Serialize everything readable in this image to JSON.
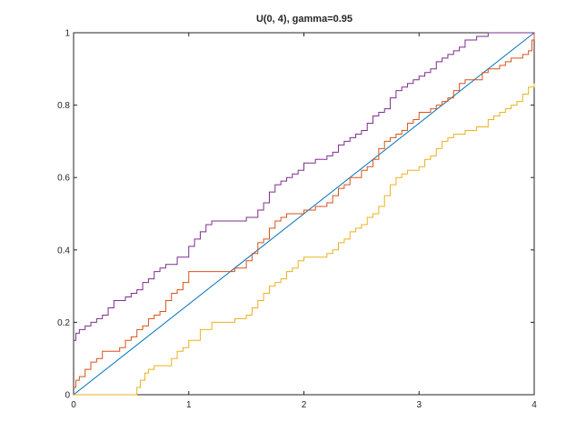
{
  "chart_data": {
    "type": "line",
    "title": "U(0, 4),  gamma=0.95",
    "xlabel": "",
    "ylabel": "",
    "xlim": [
      0,
      4
    ],
    "ylim": [
      0,
      1
    ],
    "xticks": [
      0,
      1,
      2,
      3,
      4
    ],
    "yticks": [
      0,
      0.2,
      0.4,
      0.6,
      0.8,
      1
    ],
    "xtick_labels": [
      "0",
      "1",
      "2",
      "3",
      "4"
    ],
    "ytick_labels": [
      "0",
      "0.2",
      "0.4",
      "0.6",
      "0.8",
      "1"
    ],
    "grid": false,
    "legend": "none",
    "series": [
      {
        "color": "#0072bd",
        "step": false,
        "x": [
          0,
          4
        ],
        "y": [
          0,
          1
        ]
      },
      {
        "color": "#d95319",
        "step": true,
        "x": [
          0,
          0.02,
          0.05,
          0.1,
          0.15,
          0.2,
          0.25,
          0.3,
          0.35,
          0.4,
          0.45,
          0.5,
          0.55,
          0.6,
          0.65,
          0.7,
          0.75,
          0.8,
          0.85,
          0.9,
          0.95,
          1.0,
          1.05,
          1.1,
          1.15,
          1.2,
          1.3,
          1.4,
          1.5,
          1.55,
          1.6,
          1.65,
          1.7,
          1.75,
          1.8,
          1.85,
          1.9,
          2.0,
          2.1,
          2.2,
          2.25,
          2.3,
          2.35,
          2.4,
          2.45,
          2.5,
          2.55,
          2.6,
          2.65,
          2.7,
          2.75,
          2.8,
          2.85,
          2.9,
          2.95,
          3.0,
          3.05,
          3.1,
          3.15,
          3.2,
          3.25,
          3.3,
          3.35,
          3.4,
          3.45,
          3.5,
          3.55,
          3.6,
          3.7,
          3.75,
          3.8,
          3.85,
          3.9,
          3.95,
          3.98,
          4.0
        ],
        "y": [
          0.02,
          0.04,
          0.05,
          0.07,
          0.09,
          0.1,
          0.12,
          0.12,
          0.12,
          0.13,
          0.15,
          0.16,
          0.18,
          0.19,
          0.21,
          0.22,
          0.23,
          0.26,
          0.28,
          0.29,
          0.31,
          0.34,
          0.34,
          0.34,
          0.34,
          0.34,
          0.34,
          0.35,
          0.37,
          0.39,
          0.42,
          0.43,
          0.46,
          0.48,
          0.49,
          0.5,
          0.5,
          0.51,
          0.52,
          0.53,
          0.55,
          0.57,
          0.58,
          0.6,
          0.6,
          0.62,
          0.63,
          0.65,
          0.68,
          0.7,
          0.71,
          0.72,
          0.73,
          0.75,
          0.76,
          0.78,
          0.78,
          0.79,
          0.8,
          0.81,
          0.82,
          0.84,
          0.86,
          0.87,
          0.87,
          0.87,
          0.89,
          0.9,
          0.91,
          0.92,
          0.93,
          0.93,
          0.94,
          0.95,
          0.98,
          1.0
        ]
      },
      {
        "color": "#edb120",
        "step": true,
        "x": [
          0,
          0.55,
          0.58,
          0.62,
          0.65,
          0.7,
          0.75,
          0.8,
          0.85,
          0.9,
          0.95,
          1.0,
          1.1,
          1.2,
          1.3,
          1.4,
          1.5,
          1.55,
          1.6,
          1.65,
          1.7,
          1.75,
          1.8,
          1.85,
          1.9,
          1.95,
          2.0,
          2.1,
          2.2,
          2.25,
          2.3,
          2.35,
          2.4,
          2.45,
          2.5,
          2.55,
          2.6,
          2.65,
          2.7,
          2.75,
          2.8,
          2.85,
          2.9,
          2.95,
          3.0,
          3.05,
          3.1,
          3.15,
          3.2,
          3.25,
          3.3,
          3.35,
          3.4,
          3.5,
          3.6,
          3.65,
          3.7,
          3.75,
          3.8,
          3.85,
          3.9,
          3.95,
          4.0
        ],
        "y": [
          0.0,
          0.02,
          0.04,
          0.06,
          0.07,
          0.08,
          0.08,
          0.08,
          0.1,
          0.12,
          0.13,
          0.15,
          0.18,
          0.2,
          0.2,
          0.21,
          0.22,
          0.24,
          0.26,
          0.28,
          0.3,
          0.31,
          0.32,
          0.34,
          0.35,
          0.37,
          0.38,
          0.38,
          0.39,
          0.4,
          0.42,
          0.43,
          0.45,
          0.46,
          0.47,
          0.49,
          0.5,
          0.52,
          0.55,
          0.58,
          0.6,
          0.61,
          0.62,
          0.62,
          0.63,
          0.65,
          0.66,
          0.68,
          0.7,
          0.71,
          0.72,
          0.72,
          0.73,
          0.74,
          0.76,
          0.77,
          0.78,
          0.79,
          0.8,
          0.81,
          0.83,
          0.85,
          0.86
        ]
      },
      {
        "color": "#7e2f8e",
        "step": true,
        "x": [
          0,
          0.02,
          0.05,
          0.1,
          0.15,
          0.2,
          0.25,
          0.3,
          0.35,
          0.4,
          0.45,
          0.5,
          0.55,
          0.6,
          0.65,
          0.7,
          0.75,
          0.8,
          0.85,
          0.9,
          1.0,
          1.05,
          1.1,
          1.15,
          1.2,
          1.3,
          1.4,
          1.5,
          1.6,
          1.65,
          1.7,
          1.75,
          1.8,
          1.85,
          1.9,
          1.95,
          2.0,
          2.1,
          2.2,
          2.25,
          2.3,
          2.35,
          2.4,
          2.45,
          2.5,
          2.55,
          2.6,
          2.65,
          2.7,
          2.75,
          2.8,
          2.85,
          2.9,
          2.95,
          3.0,
          3.05,
          3.1,
          3.15,
          3.2,
          3.25,
          3.3,
          3.35,
          3.4,
          3.5,
          3.6,
          3.7,
          3.8,
          3.9,
          4.0
        ],
        "y": [
          0.15,
          0.17,
          0.18,
          0.19,
          0.2,
          0.21,
          0.22,
          0.24,
          0.26,
          0.26,
          0.27,
          0.28,
          0.29,
          0.31,
          0.32,
          0.34,
          0.35,
          0.36,
          0.36,
          0.38,
          0.41,
          0.43,
          0.45,
          0.47,
          0.48,
          0.48,
          0.48,
          0.49,
          0.51,
          0.53,
          0.56,
          0.58,
          0.59,
          0.6,
          0.61,
          0.62,
          0.64,
          0.65,
          0.66,
          0.67,
          0.69,
          0.7,
          0.71,
          0.72,
          0.73,
          0.75,
          0.77,
          0.78,
          0.79,
          0.82,
          0.84,
          0.85,
          0.86,
          0.87,
          0.88,
          0.89,
          0.9,
          0.92,
          0.93,
          0.94,
          0.95,
          0.96,
          0.98,
          0.99,
          1.0,
          1.0,
          1.0,
          1.0,
          1.0
        ]
      }
    ]
  }
}
